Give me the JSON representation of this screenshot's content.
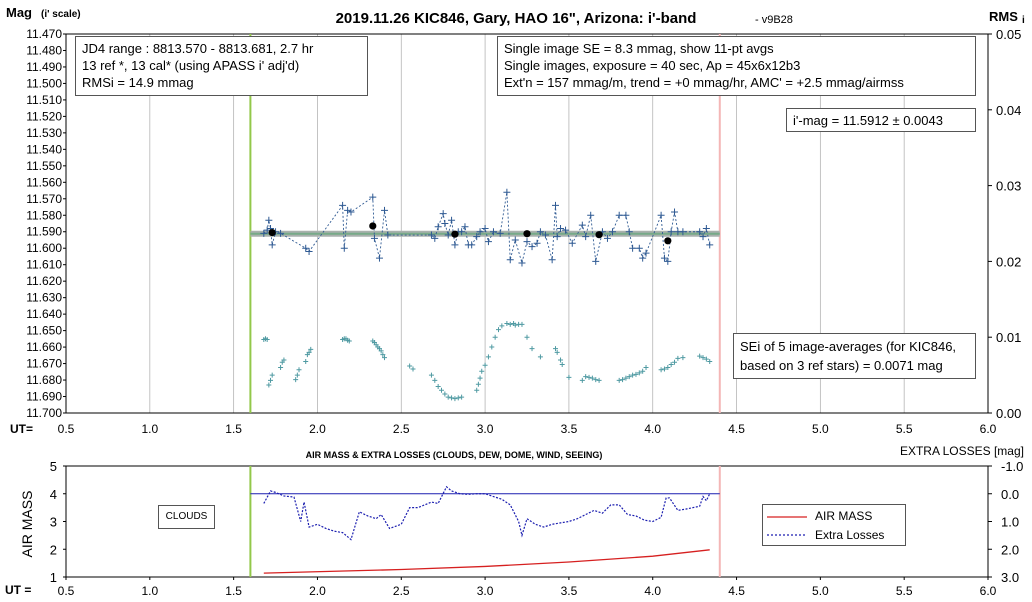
{
  "colors": {
    "cursor_green": "#92c84a",
    "cursor_pink": "#f4b6b6",
    "data_blue": "#2f5a93",
    "avg_black": "#000000",
    "sei_teal": "#4f9aa2",
    "fit_green": "#77aa88",
    "fit_gray": "#a9b1ad",
    "airmass_red": "#d62020",
    "losses_blue": "#1c1fb0",
    "grid": "#b5b5b5"
  },
  "text": {
    "title": "2019.11.26 KIC846, Gary, HAO 16\", Arizona: i'-band",
    "version": "- v9B28",
    "left_axis_label": "Mag",
    "left_axis_sub": "(i' scale)",
    "right_axis_label": "RMS",
    "right_axis_sub": "i",
    "ut_label_top": "UT=",
    "ut_label_bottom": "UT =",
    "lower_title": "AIR MASS & EXTRA LOSSES (CLOUDS, DEW, DOME, WIND, SEEING)",
    "lower_left_label": "AIR MASS",
    "lower_right_label": "EXTRA LOSSES [mag]",
    "clouds_label": "CLOUDS",
    "legend_airmass": "AIR MASS",
    "legend_losses": "Extra Losses"
  },
  "info_left": [
    "JD4 range : 8813.570 - 8813.681, 2.7  hr",
    "13 ref *, 13 cal* (using APASS i' adj'd)",
    "RMSi = 14.9 mmag"
  ],
  "info_right": [
    "Single image SE = 8.3 mmag, show 11-pt avgs",
    "Single images, exposure = 40 sec, Ap = 45x6x12b3",
    "Ext'n = 157 mmag/m, trend = +0 mmag/hr, AMC' = +2.5 mmag/airmss"
  ],
  "imag_text": "i'-mag = 11.5912 ± 0.0043",
  "sei_text": [
    "SEi of 5 image-averages (for KIC846,",
    "based on 3 ref stars) = 0.0071 mag"
  ],
  "chart_data": [
    {
      "type": "scatter",
      "title": "2019.11.26 KIC846, Gary, HAO 16\", Arizona: i'-band",
      "xlabel": "UT=",
      "ylabel": "Mag (i' scale)",
      "y2label": "RMS i",
      "xlim": [
        0.5,
        6.0
      ],
      "ylim": [
        11.47,
        11.7
      ],
      "y_inverted": true,
      "y2lim": [
        0.0,
        0.05
      ],
      "x_ticks": [
        "0.5",
        "1.0",
        "1.5",
        "2.0",
        "2.5",
        "3.0",
        "3.5",
        "4.0",
        "4.5",
        "5.0",
        "5.5",
        "6.0"
      ],
      "y_ticks": [
        "11.470",
        "11.480",
        "11.490",
        "11.500",
        "11.510",
        "11.520",
        "11.530",
        "11.540",
        "11.550",
        "11.560",
        "11.570",
        "11.580",
        "11.590",
        "11.600",
        "11.610",
        "11.620",
        "11.630",
        "11.640",
        "11.650",
        "11.660",
        "11.670",
        "11.680",
        "11.690",
        "11.700"
      ],
      "y2_ticks": [
        "0.00",
        "0.01",
        "0.02",
        "0.03",
        "0.04",
        "0.05"
      ],
      "grid": true,
      "cursors": [
        1.6,
        4.4
      ],
      "fit": {
        "x": [
          1.6,
          4.4
        ],
        "y": 11.5912
      },
      "series": [
        {
          "x": [
            1.68,
            1.7,
            1.71,
            1.72,
            1.73,
            1.75,
            1.78,
            1.93,
            1.95,
            2.15,
            2.16,
            2.18,
            2.2,
            2.33,
            2.34,
            2.37,
            2.4,
            2.42,
            2.68,
            2.7,
            2.72,
            2.75,
            2.76,
            2.78,
            2.8,
            2.82,
            2.84,
            2.86,
            2.88,
            2.9,
            2.92,
            2.95,
            2.97,
            3.0,
            3.02,
            3.05,
            3.09,
            3.13,
            3.15,
            3.18,
            3.22,
            3.25,
            3.28,
            3.31,
            3.33,
            3.36,
            3.4,
            3.42,
            3.43,
            3.45,
            3.48,
            3.52,
            3.58,
            3.6,
            3.63,
            3.66,
            3.7,
            3.73,
            3.76,
            3.8,
            3.84,
            3.86,
            3.88,
            3.92,
            3.94,
            3.96,
            4.05,
            4.07,
            4.09,
            4.11,
            4.13,
            4.15,
            4.18,
            4.28,
            4.3,
            4.32,
            4.34
          ],
          "y": [
            11.591,
            11.589,
            11.583,
            11.588,
            11.598,
            11.59,
            11.591,
            11.6,
            11.602,
            11.574,
            11.6,
            11.577,
            11.578,
            11.569,
            11.594,
            11.606,
            11.577,
            11.592,
            11.592,
            11.594,
            11.587,
            11.579,
            11.585,
            11.592,
            11.583,
            11.598,
            11.59,
            11.59,
            11.587,
            11.598,
            11.598,
            11.593,
            11.59,
            11.588,
            11.596,
            11.59,
            11.591,
            11.566,
            11.607,
            11.595,
            11.609,
            11.596,
            11.599,
            11.597,
            11.59,
            11.592,
            11.607,
            11.574,
            11.593,
            11.588,
            11.589,
            11.597,
            11.586,
            11.593,
            11.58,
            11.608,
            11.59,
            11.594,
            11.59,
            11.58,
            11.58,
            11.59,
            11.6,
            11.6,
            11.606,
            11.603,
            11.58,
            11.606,
            11.608,
            11.59,
            11.578,
            11.59,
            11.59,
            11.59,
            11.593,
            11.588,
            11.598
          ]
        },
        {
          "x": [
            1.73,
            2.33,
            2.82,
            3.25,
            3.68,
            4.09
          ],
          "y": [
            11.5905,
            11.5865,
            11.5915,
            11.5912,
            11.5918,
            11.5955
          ]
        },
        {
          "x": [
            1.68,
            1.69,
            1.7,
            1.71,
            1.72,
            1.73,
            1.78,
            1.79,
            1.8,
            1.87,
            1.88,
            1.89,
            1.93,
            1.94,
            1.95,
            1.96,
            2.15,
            2.16,
            2.17,
            2.18,
            2.19,
            2.33,
            2.34,
            2.35,
            2.36,
            2.37,
            2.38,
            2.39,
            2.4,
            2.55,
            2.57,
            2.68,
            2.7,
            2.72,
            2.74,
            2.76,
            2.78,
            2.8,
            2.82,
            2.84,
            2.86,
            2.95,
            2.96,
            2.97,
            2.98,
            3.0,
            3.02,
            3.04,
            3.06,
            3.08,
            3.1,
            3.13,
            3.15,
            3.17,
            3.18,
            3.2,
            3.22,
            3.25,
            3.28,
            3.33,
            3.42,
            3.43,
            3.45,
            3.46,
            3.5,
            3.58,
            3.6,
            3.62,
            3.64,
            3.66,
            3.68,
            3.8,
            3.82,
            3.84,
            3.86,
            3.88,
            3.9,
            3.92,
            3.94,
            3.96,
            4.05,
            4.07,
            4.09,
            4.11,
            4.13,
            4.15,
            4.18,
            4.28,
            4.3,
            4.32,
            4.34
          ],
          "sei": [
            0.0097,
            0.0098,
            0.0097,
            0.0037,
            0.0043,
            0.005,
            0.006,
            0.0067,
            0.007,
            0.0044,
            0.005,
            0.0057,
            0.0068,
            0.0077,
            0.008,
            0.0084,
            0.0097,
            0.0098,
            0.0098,
            0.0096,
            0.0095,
            0.0095,
            0.0093,
            0.009,
            0.0087,
            0.0085,
            0.0082,
            0.0077,
            0.0073,
            0.0062,
            0.0058,
            0.005,
            0.0043,
            0.0035,
            0.003,
            0.0025,
            0.0021,
            0.002,
            0.0019,
            0.002,
            0.0021,
            0.003,
            0.0038,
            0.0046,
            0.0055,
            0.0063,
            0.0074,
            0.0087,
            0.01,
            0.011,
            0.0115,
            0.0118,
            0.0117,
            0.0118,
            0.0116,
            0.0117,
            0.0117,
            0.01,
            0.0085,
            0.0074,
            0.0085,
            0.008,
            0.007,
            0.0064,
            0.0047,
            0.0043,
            0.0048,
            0.0047,
            0.0046,
            0.0044,
            0.0043,
            0.0043,
            0.0044,
            0.0046,
            0.0048,
            0.005,
            0.0051,
            0.0053,
            0.0055,
            0.006,
            0.0057,
            0.0058,
            0.006,
            0.0064,
            0.0067,
            0.0072,
            0.0073,
            0.0075,
            0.0073,
            0.0071,
            0.0068
          ]
        }
      ]
    },
    {
      "type": "line",
      "title": "AIR MASS & EXTRA LOSSES (CLOUDS, DEW, DOME, WIND, SEEING)",
      "xlabel": "UT =",
      "ylabel": "AIR MASS",
      "y2label": "EXTRA LOSSES [mag]",
      "xlim": [
        0.5,
        6.0
      ],
      "ylim": [
        1,
        5
      ],
      "y2lim": [
        -1.0,
        3.0
      ],
      "y2_inverted": true,
      "x_ticks": [
        "0.5",
        "1.0",
        "1.5",
        "2.0",
        "2.5",
        "3.0",
        "3.5",
        "4.0",
        "4.5",
        "5.0",
        "5.5",
        "6.0"
      ],
      "y_ticks": [
        "1",
        "2",
        "3",
        "4",
        "5"
      ],
      "y2_ticks": [
        "-1.0",
        "0.0",
        "1.0",
        "2.0",
        "3.0"
      ],
      "legend": "right",
      "series": [
        {
          "name": "AIR MASS",
          "x": [
            1.68,
            2.5,
            3.0,
            3.5,
            4.0,
            4.34
          ],
          "values": [
            1.14,
            1.27,
            1.38,
            1.54,
            1.75,
            1.98
          ]
        },
        {
          "name": "Extra Losses",
          "x": [
            1.68,
            1.72,
            1.75,
            1.8,
            1.86,
            1.9,
            1.92,
            1.95,
            2.0,
            2.05,
            2.1,
            2.15,
            2.2,
            2.25,
            2.3,
            2.35,
            2.38,
            2.43,
            2.5,
            2.55,
            2.6,
            2.68,
            2.72,
            2.77,
            2.8,
            2.85,
            2.9,
            2.95,
            3.0,
            3.05,
            3.1,
            3.15,
            3.2,
            3.22,
            3.25,
            3.3,
            3.35,
            3.4,
            3.45,
            3.5,
            3.55,
            3.6,
            3.65,
            3.7,
            3.75,
            3.8,
            3.85,
            3.9,
            3.95,
            4.0,
            4.05,
            4.08,
            4.1,
            4.15,
            4.2,
            4.28,
            4.3,
            4.32,
            4.34
          ],
          "values": [
            0.35,
            -0.1,
            -0.05,
            0.08,
            0.12,
            1.0,
            0.3,
            1.2,
            1.1,
            1.25,
            1.35,
            1.4,
            1.65,
            0.65,
            0.8,
            0.9,
            0.75,
            1.25,
            1.1,
            0.5,
            0.5,
            0.3,
            0.35,
            -0.25,
            -0.1,
            0.0,
            0.02,
            0.0,
            0.0,
            0.1,
            0.2,
            0.4,
            1.0,
            1.5,
            0.9,
            1.1,
            1.2,
            1.1,
            1.05,
            1.0,
            0.9,
            0.75,
            0.6,
            0.7,
            0.4,
            0.4,
            0.75,
            0.8,
            0.95,
            1.0,
            0.85,
            0.15,
            0.15,
            0.6,
            0.55,
            0.45,
            0.1,
            0.25,
            0.0
          ]
        },
        {
          "name": "",
          "x": [
            1.6,
            4.4
          ],
          "values": [
            4.0,
            4.0
          ]
        }
      ]
    }
  ]
}
